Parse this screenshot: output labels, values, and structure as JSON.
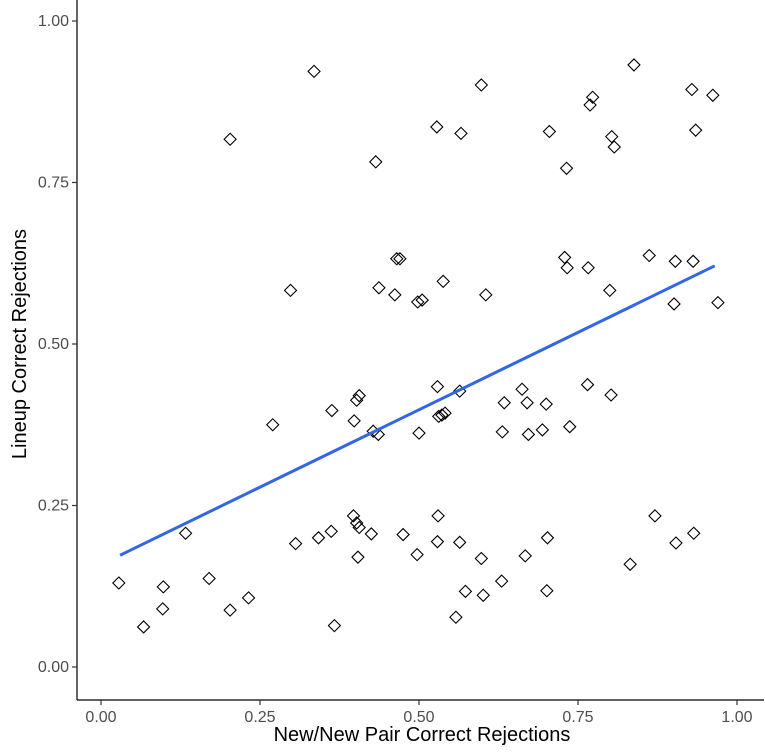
{
  "chart_data": {
    "type": "scatter",
    "title": "",
    "xlabel": "New/New Pair Correct Rejections",
    "ylabel": "Lineup Correct Rejections",
    "xlim": [
      0.0,
      1.0
    ],
    "ylim": [
      0.0,
      1.0
    ],
    "x_ticks": [
      "0.00",
      "0.25",
      "0.50",
      "0.75",
      "1.00"
    ],
    "y_ticks": [
      "0.00",
      "0.25",
      "0.50",
      "0.75",
      "1.00"
    ],
    "grid": false,
    "legend": "none",
    "marker": "open-diamond",
    "trend_line": {
      "type": "linear",
      "x": [
        0.03,
        0.965
      ],
      "y": [
        0.173,
        0.621
      ],
      "color": "#3366e6"
    },
    "points": [
      [
        0.335,
        0.922
      ],
      [
        0.598,
        0.901
      ],
      [
        0.838,
        0.932
      ],
      [
        0.929,
        0.894
      ],
      [
        0.962,
        0.885
      ],
      [
        0.773,
        0.882
      ],
      [
        0.769,
        0.87
      ],
      [
        0.203,
        0.817
      ],
      [
        0.528,
        0.836
      ],
      [
        0.566,
        0.826
      ],
      [
        0.705,
        0.829
      ],
      [
        0.803,
        0.821
      ],
      [
        0.807,
        0.805
      ],
      [
        0.935,
        0.831
      ],
      [
        0.432,
        0.782
      ],
      [
        0.732,
        0.772
      ],
      [
        0.465,
        0.632
      ],
      [
        0.47,
        0.632
      ],
      [
        0.729,
        0.634
      ],
      [
        0.733,
        0.618
      ],
      [
        0.766,
        0.618
      ],
      [
        0.862,
        0.637
      ],
      [
        0.903,
        0.628
      ],
      [
        0.931,
        0.628
      ],
      [
        0.298,
        0.583
      ],
      [
        0.437,
        0.587
      ],
      [
        0.538,
        0.597
      ],
      [
        0.462,
        0.576
      ],
      [
        0.605,
        0.576
      ],
      [
        0.498,
        0.565
      ],
      [
        0.505,
        0.568
      ],
      [
        0.8,
        0.583
      ],
      [
        0.901,
        0.562
      ],
      [
        0.97,
        0.564
      ],
      [
        0.529,
        0.434
      ],
      [
        0.564,
        0.427
      ],
      [
        0.662,
        0.43
      ],
      [
        0.765,
        0.437
      ],
      [
        0.402,
        0.413
      ],
      [
        0.406,
        0.42
      ],
      [
        0.634,
        0.409
      ],
      [
        0.67,
        0.409
      ],
      [
        0.7,
        0.407
      ],
      [
        0.802,
        0.421
      ],
      [
        0.363,
        0.397
      ],
      [
        0.531,
        0.388
      ],
      [
        0.536,
        0.39
      ],
      [
        0.541,
        0.393
      ],
      [
        0.398,
        0.381
      ],
      [
        0.27,
        0.375
      ],
      [
        0.428,
        0.365
      ],
      [
        0.436,
        0.36
      ],
      [
        0.5,
        0.362
      ],
      [
        0.631,
        0.364
      ],
      [
        0.672,
        0.36
      ],
      [
        0.694,
        0.367
      ],
      [
        0.737,
        0.372
      ],
      [
        0.871,
        0.234
      ],
      [
        0.397,
        0.234
      ],
      [
        0.53,
        0.234
      ],
      [
        0.402,
        0.223
      ],
      [
        0.406,
        0.216
      ],
      [
        0.133,
        0.207
      ],
      [
        0.342,
        0.2
      ],
      [
        0.362,
        0.21
      ],
      [
        0.425,
        0.206
      ],
      [
        0.475,
        0.205
      ],
      [
        0.702,
        0.2
      ],
      [
        0.306,
        0.191
      ],
      [
        0.529,
        0.194
      ],
      [
        0.564,
        0.193
      ],
      [
        0.904,
        0.192
      ],
      [
        0.932,
        0.207
      ],
      [
        0.404,
        0.17
      ],
      [
        0.497,
        0.174
      ],
      [
        0.598,
        0.168
      ],
      [
        0.667,
        0.172
      ],
      [
        0.832,
        0.159
      ],
      [
        0.17,
        0.137
      ],
      [
        0.028,
        0.13
      ],
      [
        0.098,
        0.124
      ],
      [
        0.63,
        0.133
      ],
      [
        0.232,
        0.107
      ],
      [
        0.573,
        0.117
      ],
      [
        0.701,
        0.118
      ],
      [
        0.097,
        0.09
      ],
      [
        0.203,
        0.088
      ],
      [
        0.601,
        0.111
      ],
      [
        0.067,
        0.062
      ],
      [
        0.367,
        0.064
      ],
      [
        0.558,
        0.077
      ]
    ]
  }
}
